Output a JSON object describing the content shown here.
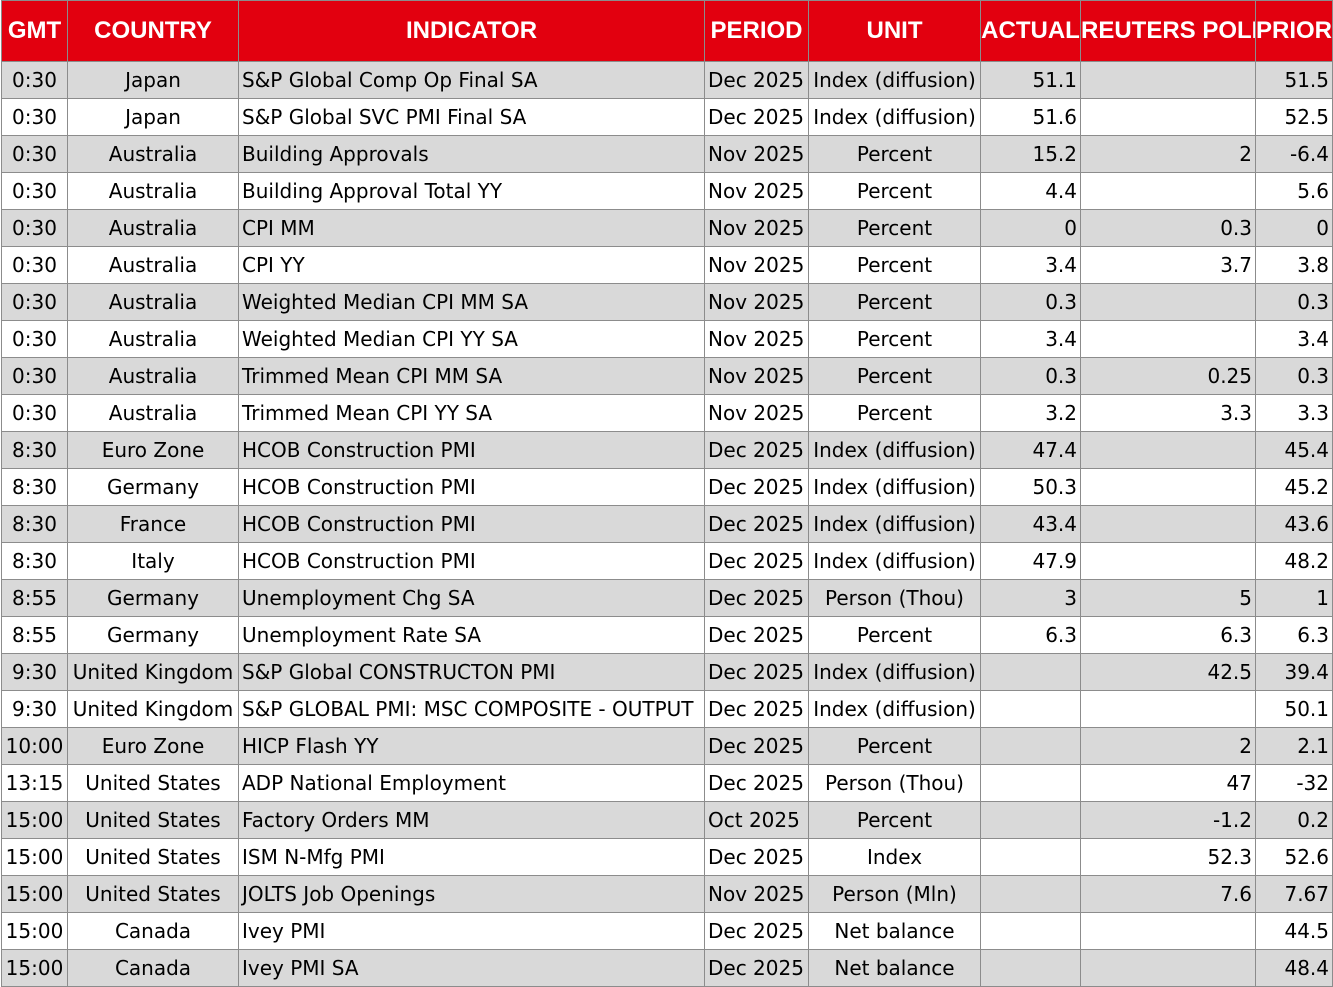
{
  "headers": {
    "gmt": "GMT",
    "country": "COUNTRY",
    "indicator": "INDICATOR",
    "period": "PERIOD",
    "unit": "UNIT",
    "actual": "ACTUAL",
    "poll": "REUTERS POLL",
    "prior": "PRIOR"
  },
  "colors": {
    "header_bg": "#e2000f",
    "header_text": "#ffffff",
    "shaded_row": "#d9d9d9",
    "plain_row": "#ffffff",
    "grid": "#8c8c8c"
  },
  "rows": [
    {
      "gmt": "0:30",
      "country": "Japan",
      "indicator": "S&P Global Comp Op Final SA",
      "period": "Dec 2025",
      "unit": "Index (diffusion)",
      "actual": "51.1",
      "poll": "",
      "prior": "51.5"
    },
    {
      "gmt": "0:30",
      "country": "Japan",
      "indicator": "S&P Global SVC PMI Final SA",
      "period": "Dec 2025",
      "unit": "Index (diffusion)",
      "actual": "51.6",
      "poll": "",
      "prior": "52.5"
    },
    {
      "gmt": "0:30",
      "country": "Australia",
      "indicator": "Building Approvals",
      "period": "Nov 2025",
      "unit": "Percent",
      "actual": "15.2",
      "poll": "2",
      "prior": "-6.4"
    },
    {
      "gmt": "0:30",
      "country": "Australia",
      "indicator": "Building Approval Total YY",
      "period": "Nov 2025",
      "unit": "Percent",
      "actual": "4.4",
      "poll": "",
      "prior": "5.6"
    },
    {
      "gmt": "0:30",
      "country": "Australia",
      "indicator": "CPI MM",
      "period": "Nov 2025",
      "unit": "Percent",
      "actual": "0",
      "poll": "0.3",
      "prior": "0"
    },
    {
      "gmt": "0:30",
      "country": "Australia",
      "indicator": "CPI YY",
      "period": "Nov 2025",
      "unit": "Percent",
      "actual": "3.4",
      "poll": "3.7",
      "prior": "3.8"
    },
    {
      "gmt": "0:30",
      "country": "Australia",
      "indicator": "Weighted Median CPI MM SA",
      "period": "Nov 2025",
      "unit": "Percent",
      "actual": "0.3",
      "poll": "",
      "prior": "0.3"
    },
    {
      "gmt": "0:30",
      "country": "Australia",
      "indicator": "Weighted Median CPI YY SA",
      "period": "Nov 2025",
      "unit": "Percent",
      "actual": "3.4",
      "poll": "",
      "prior": "3.4"
    },
    {
      "gmt": "0:30",
      "country": "Australia",
      "indicator": "Trimmed Mean CPI MM SA",
      "period": "Nov 2025",
      "unit": "Percent",
      "actual": "0.3",
      "poll": "0.25",
      "prior": "0.3"
    },
    {
      "gmt": "0:30",
      "country": "Australia",
      "indicator": "Trimmed Mean CPI YY SA",
      "period": "Nov 2025",
      "unit": "Percent",
      "actual": "3.2",
      "poll": "3.3",
      "prior": "3.3"
    },
    {
      "gmt": "8:30",
      "country": "Euro Zone",
      "indicator": "HCOB Construction PMI",
      "period": "Dec 2025",
      "unit": "Index (diffusion)",
      "actual": "47.4",
      "poll": "",
      "prior": "45.4"
    },
    {
      "gmt": "8:30",
      "country": "Germany",
      "indicator": "HCOB Construction PMI",
      "period": "Dec 2025",
      "unit": "Index (diffusion)",
      "actual": "50.3",
      "poll": "",
      "prior": "45.2"
    },
    {
      "gmt": "8:30",
      "country": "France",
      "indicator": "HCOB Construction PMI",
      "period": "Dec 2025",
      "unit": "Index (diffusion)",
      "actual": "43.4",
      "poll": "",
      "prior": "43.6"
    },
    {
      "gmt": "8:30",
      "country": "Italy",
      "indicator": "HCOB Construction PMI",
      "period": "Dec 2025",
      "unit": "Index (diffusion)",
      "actual": "47.9",
      "poll": "",
      "prior": "48.2"
    },
    {
      "gmt": "8:55",
      "country": "Germany",
      "indicator": "Unemployment Chg SA",
      "period": "Dec 2025",
      "unit": "Person (Thou)",
      "actual": "3",
      "poll": "5",
      "prior": "1"
    },
    {
      "gmt": "8:55",
      "country": "Germany",
      "indicator": "Unemployment Rate SA",
      "period": "Dec 2025",
      "unit": "Percent",
      "actual": "6.3",
      "poll": "6.3",
      "prior": "6.3"
    },
    {
      "gmt": "9:30",
      "country": "United Kingdom",
      "indicator": "S&P Global CONSTRUCTON PMI",
      "period": "Dec 2025",
      "unit": "Index (diffusion)",
      "actual": "",
      "poll": "42.5",
      "prior": "39.4"
    },
    {
      "gmt": "9:30",
      "country": "United Kingdom",
      "indicator": "S&P GLOBAL PMI: MSC COMPOSITE - OUTPUT",
      "period": "Dec 2025",
      "unit": "Index (diffusion)",
      "actual": "",
      "poll": "",
      "prior": "50.1"
    },
    {
      "gmt": "10:00",
      "country": "Euro Zone",
      "indicator": "HICP Flash YY",
      "period": "Dec 2025",
      "unit": "Percent",
      "actual": "",
      "poll": "2",
      "prior": "2.1"
    },
    {
      "gmt": "13:15",
      "country": "United States",
      "indicator": "ADP National Employment",
      "period": "Dec 2025",
      "unit": "Person (Thou)",
      "actual": "",
      "poll": "47",
      "prior": "-32"
    },
    {
      "gmt": "15:00",
      "country": "United States",
      "indicator": "Factory Orders MM",
      "period": "Oct 2025",
      "unit": "Percent",
      "actual": "",
      "poll": "-1.2",
      "prior": "0.2"
    },
    {
      "gmt": "15:00",
      "country": "United States",
      "indicator": "ISM N-Mfg PMI",
      "period": "Dec 2025",
      "unit": "Index",
      "actual": "",
      "poll": "52.3",
      "prior": "52.6"
    },
    {
      "gmt": "15:00",
      "country": "United States",
      "indicator": "JOLTS Job Openings",
      "period": "Nov 2025",
      "unit": "Person (Mln)",
      "actual": "",
      "poll": "7.6",
      "prior": "7.67"
    },
    {
      "gmt": "15:00",
      "country": "Canada",
      "indicator": "Ivey PMI",
      "period": "Dec 2025",
      "unit": "Net balance",
      "actual": "",
      "poll": "",
      "prior": "44.5"
    },
    {
      "gmt": "15:00",
      "country": "Canada",
      "indicator": "Ivey PMI SA",
      "period": "Dec 2025",
      "unit": "Net balance",
      "actual": "",
      "poll": "",
      "prior": "48.4"
    }
  ]
}
